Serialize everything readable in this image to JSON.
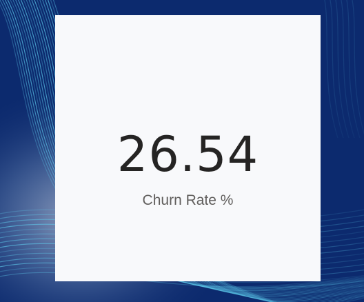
{
  "background": {
    "base_color": "#0c2a6e",
    "line_color": "#5fd0f0",
    "glow_color": "#ffffff"
  },
  "card": {
    "background_color": "#f8f9fb",
    "value": "26.54",
    "label": "Churn Rate %",
    "value_color": "#252423",
    "label_color": "#605e5c"
  }
}
